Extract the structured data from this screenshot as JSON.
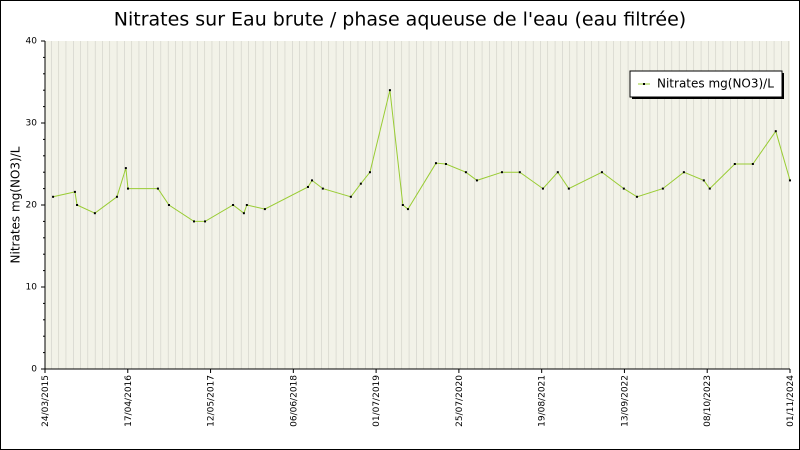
{
  "chart_data": {
    "type": "line",
    "title": "Nitrates sur Eau brute / phase aqueuse de l'eau (eau filtrée)",
    "y_label": "Nitrates mg(NO3)/L",
    "x": [
      "2015-05-01",
      "2015-08-12",
      "2015-08-22",
      "2015-11-14",
      "2016-02-26",
      "2016-04-08",
      "2016-04-18",
      "2016-09-06",
      "2016-10-28",
      "2017-02-23",
      "2017-04-16",
      "2017-08-26",
      "2017-10-16",
      "2017-10-30",
      "2018-01-23",
      "2018-08-14",
      "2018-09-02",
      "2018-10-23",
      "2019-03-04",
      "2019-04-20",
      "2019-06-02",
      "2019-09-04",
      "2019-11-04",
      "2019-11-28",
      "2020-04-08",
      "2020-05-25",
      "2020-08-27",
      "2020-10-18",
      "2021-02-13",
      "2021-05-08",
      "2021-08-25",
      "2021-11-03",
      "2021-12-25",
      "2022-05-30",
      "2022-09-10",
      "2022-11-11",
      "2023-03-13",
      "2023-06-20",
      "2023-09-22",
      "2023-10-20",
      "2024-02-15",
      "2024-05-10",
      "2024-08-26",
      "2024-11-01"
    ],
    "series": [
      {
        "name": "Nitrates mg(NO3)/L",
        "color": "#99cc33",
        "values": [
          21.0,
          21.6,
          20.0,
          19.0,
          21.0,
          24.5,
          22.0,
          22.0,
          20.0,
          18.0,
          18.0,
          20.0,
          19.0,
          20.0,
          19.5,
          22.2,
          23.0,
          22.0,
          21.0,
          22.6,
          24.0,
          34.0,
          20.0,
          19.5,
          25.1,
          25.0,
          24.0,
          23.0,
          24.0,
          24.0,
          22.0,
          24.0,
          22.0,
          24.0,
          22.0,
          21.0,
          22.0,
          24.0,
          23.0,
          22.0,
          25.0,
          25.0,
          29.0,
          23.0
        ]
      }
    ],
    "xlim": [
      "2015-03-24",
      "2024-11-01"
    ],
    "xticks": [
      {
        "value": "2015-03-24",
        "label": "24/03/2015"
      },
      {
        "value": "2016-04-17",
        "label": "17/04/2016"
      },
      {
        "value": "2017-05-12",
        "label": "12/05/2017"
      },
      {
        "value": "2018-06-06",
        "label": "06/06/2018"
      },
      {
        "value": "2019-07-01",
        "label": "01/07/2019"
      },
      {
        "value": "2020-07-25",
        "label": "25/07/2020"
      },
      {
        "value": "2021-08-19",
        "label": "19/08/2021"
      },
      {
        "value": "2022-09-13",
        "label": "13/09/2022"
      },
      {
        "value": "2023-10-08",
        "label": "08/10/2023"
      },
      {
        "value": "2024-11-01",
        "label": "01/11/2024"
      }
    ],
    "ylim": [
      0,
      40
    ],
    "yticks": [
      0,
      10,
      20,
      30,
      40
    ],
    "legend": "top-right"
  }
}
